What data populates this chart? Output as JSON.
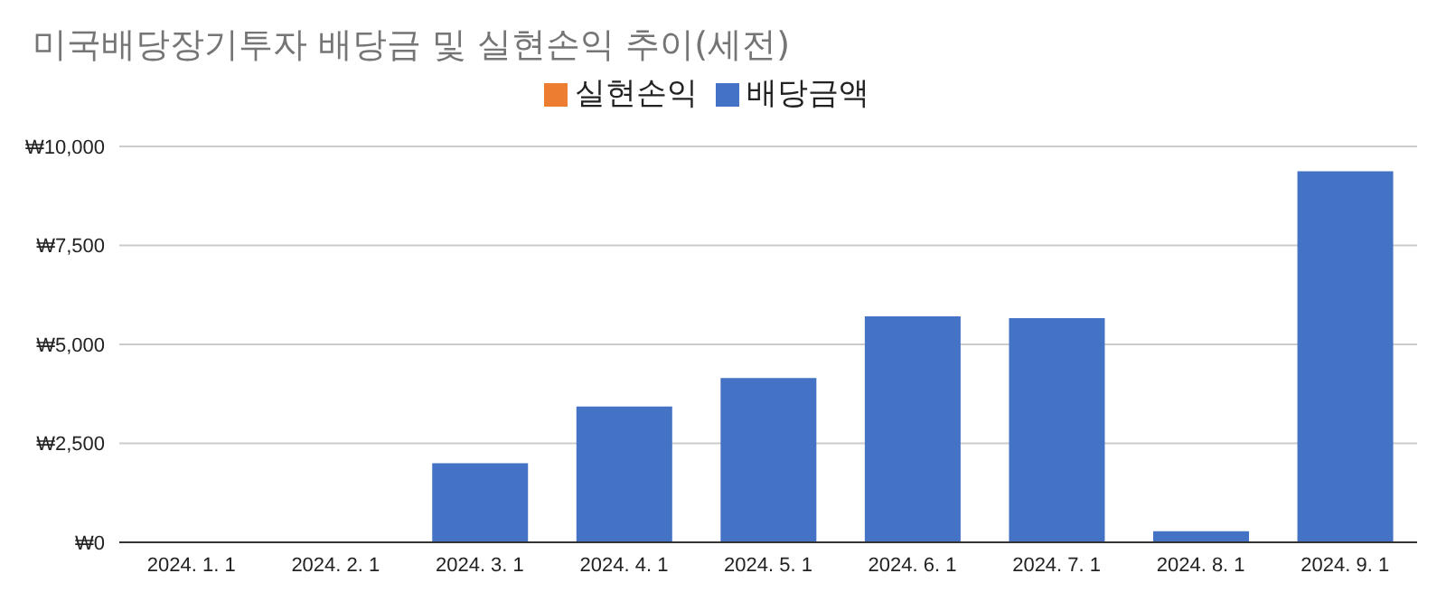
{
  "chart_data": {
    "type": "bar",
    "title": "미국배당장기투자 배당금 및 실현손익 추이(세전)",
    "categories": [
      "2024. 1. 1",
      "2024. 2. 1",
      "2024. 3. 1",
      "2024. 4. 1",
      "2024. 5. 1",
      "2024. 6. 1",
      "2024. 7. 1",
      "2024. 8. 1",
      "2024. 9. 1"
    ],
    "series": [
      {
        "name": "실현손익",
        "color": "#ed7d31",
        "values": [
          0,
          0,
          0,
          0,
          0,
          0,
          0,
          0,
          0
        ]
      },
      {
        "name": "배당금액",
        "color": "#4472c4",
        "values": [
          0,
          0,
          2000,
          3430,
          4150,
          5710,
          5660,
          280,
          9370
        ]
      }
    ],
    "stacked": true,
    "ylim": [
      0,
      10000
    ],
    "yticks": [
      {
        "value": 0,
        "label": "₩0"
      },
      {
        "value": 2500,
        "label": "₩2,500"
      },
      {
        "value": 5000,
        "label": "₩5,000"
      },
      {
        "value": 7500,
        "label": "₩7,500"
      },
      {
        "value": 10000,
        "label": "₩10,000"
      }
    ],
    "grid": "y",
    "legend": "top"
  }
}
